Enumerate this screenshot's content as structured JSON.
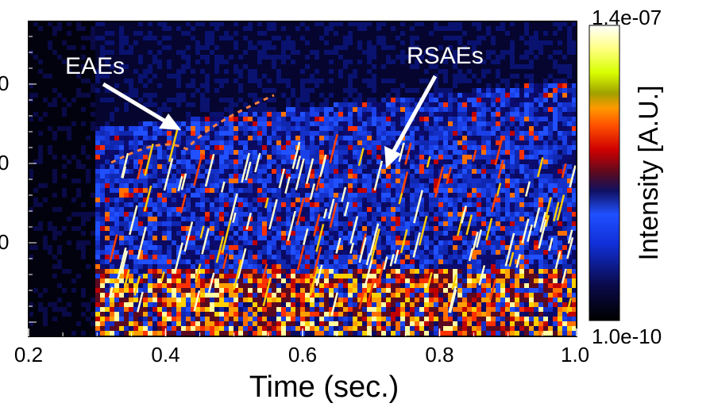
{
  "chart_data": {
    "type": "heatmap",
    "title": "",
    "xlabel": "Time (sec.)",
    "ylabel": "",
    "xlim": [
      0.2,
      1.0
    ],
    "x_ticks": [
      "0.2",
      "0.4",
      "0.6",
      "0.8",
      "1.0"
    ],
    "y_tick_labels_partial": [
      "0",
      "0",
      "0"
    ],
    "colorbar": {
      "title": "Intensity [A.U.]",
      "max_label": "1.4e-07",
      "min_label": "1.0e-10",
      "scale": "log",
      "colors": [
        "#000000",
        "#0a0a5a",
        "#1030d8",
        "#2050ff",
        "#5a0a20",
        "#d00000",
        "#ff4a00",
        "#ff9a00",
        "#a0b000",
        "#e8ff00",
        "#ffffa0",
        "#ffffff"
      ]
    },
    "annotations": [
      {
        "text": "EAEs",
        "arrow_to_time": 0.42
      },
      {
        "text": "RSAEs",
        "arrow_to_time": 0.71
      }
    ],
    "data_start_time": 0.3
  }
}
